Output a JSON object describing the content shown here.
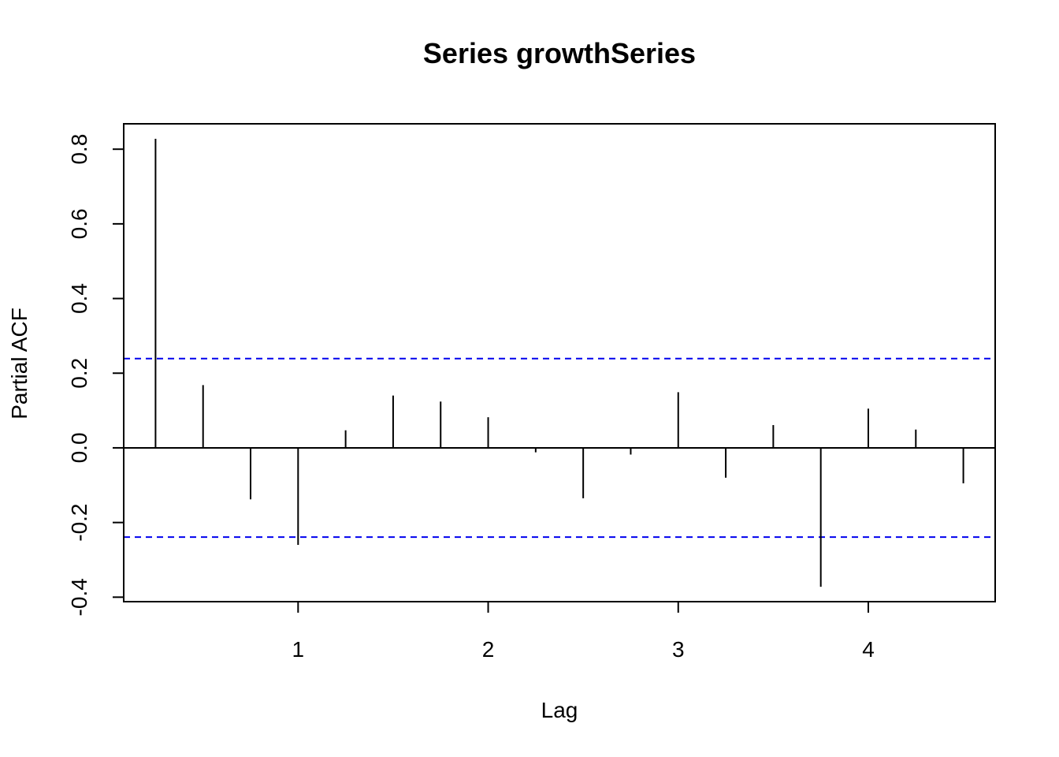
{
  "chart_data": {
    "type": "bar",
    "title": "Series  growthSeries",
    "xlabel": "Lag",
    "ylabel": "Partial ACF",
    "x": [
      0.25,
      0.5,
      0.75,
      1.0,
      1.25,
      1.5,
      1.75,
      2.0,
      2.25,
      2.5,
      2.75,
      3.0,
      3.25,
      3.5,
      3.75,
      4.0,
      4.25,
      4.5
    ],
    "values": [
      0.828,
      0.168,
      -0.138,
      -0.26,
      0.047,
      0.14,
      0.124,
      0.082,
      -0.012,
      -0.135,
      -0.018,
      0.149,
      -0.08,
      0.061,
      -0.372,
      0.105,
      0.049,
      -0.095
    ],
    "confidence_bounds": [
      0.239,
      -0.239
    ],
    "xlim": [
      0.0825,
      4.6675
    ],
    "ylim": [
      -0.412,
      0.868
    ],
    "xticks": [
      1,
      2,
      3,
      4
    ],
    "yticks": [
      -0.4,
      -0.2,
      0.0,
      0.2,
      0.4,
      0.6,
      0.8
    ],
    "ytick_labels": [
      "-0.4",
      "-0.2",
      "0.0",
      "0.2",
      "0.4",
      "0.6",
      "0.8"
    ],
    "xtick_labels": [
      "1",
      "2",
      "3",
      "4"
    ],
    "grid": false,
    "colors": {
      "spikes": "#000000",
      "bounds": "#0000ee",
      "axes": "#000000"
    }
  }
}
